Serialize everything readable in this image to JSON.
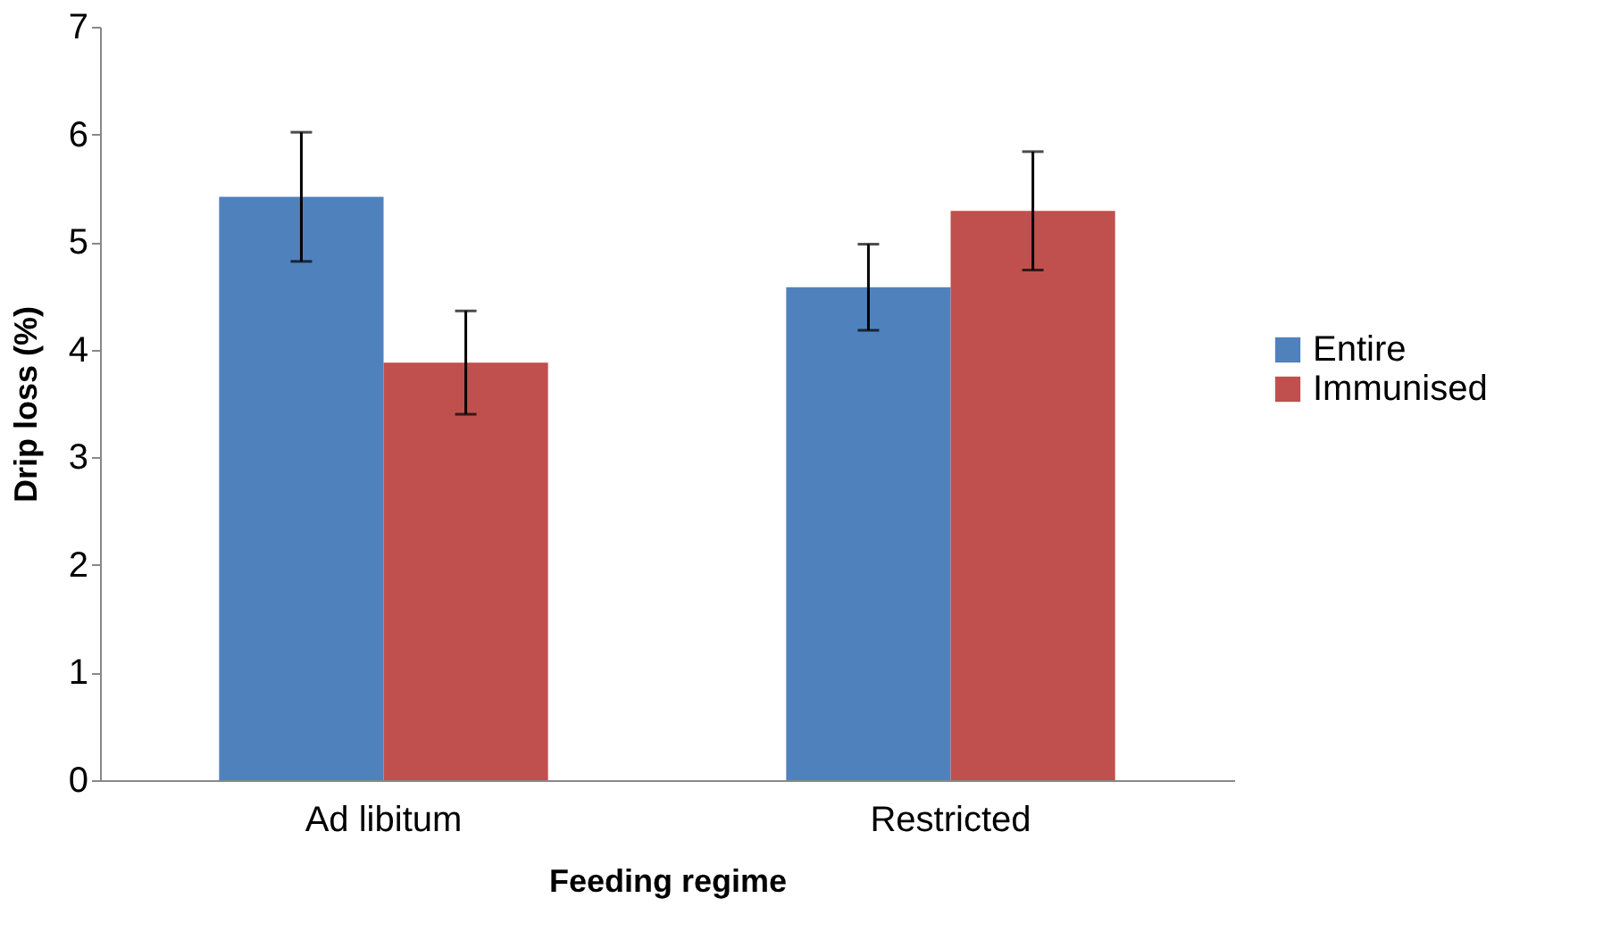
{
  "chart_data": {
    "type": "bar",
    "xlabel": "Feeding regime",
    "ylabel": "Drip loss (%)",
    "categories": [
      "Ad libitum",
      "Restricted"
    ],
    "series": [
      {
        "name": "Entire",
        "color": "#4f81bd",
        "values": [
          5.42,
          4.58
        ],
        "errors": [
          0.6,
          0.4
        ]
      },
      {
        "name": "Immunised",
        "color": "#c0504d",
        "values": [
          3.88,
          5.29
        ],
        "errors": [
          0.48,
          0.55
        ]
      }
    ],
    "ylim": [
      0,
      7
    ],
    "yticks": [
      0,
      1,
      2,
      3,
      4,
      5,
      6,
      7
    ],
    "grid": false,
    "legend": "right"
  }
}
